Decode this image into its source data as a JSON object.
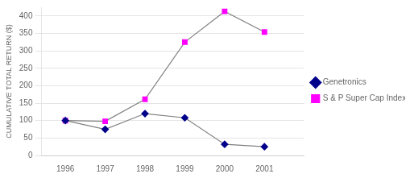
{
  "chart_data": {
    "type": "line",
    "x": [
      1996,
      1997,
      1998,
      1999,
      2000,
      2001
    ],
    "series": [
      {
        "name": "Genetronics",
        "color": "#00008B",
        "marker": "diamond",
        "values": [
          100,
          75,
          120,
          108,
          32,
          25
        ]
      },
      {
        "name": "S & P Super Cap Index",
        "color": "#FF00FF",
        "marker": "square",
        "values": [
          100,
          98,
          161,
          325,
          413,
          354
        ]
      }
    ],
    "color": "#808080",
    "ylabel": "CUMULATIVE TOTAL RETURN ($)",
    "xlim": [
      1995.4,
      2002.0
    ],
    "xticks": [
      1996,
      1997,
      1998,
      1999,
      2000,
      2001
    ],
    "ylim": [
      0,
      425
    ],
    "yticks": [
      0,
      50,
      100,
      150,
      200,
      250,
      300,
      350,
      400
    ],
    "grid": true,
    "legend": "right"
  }
}
